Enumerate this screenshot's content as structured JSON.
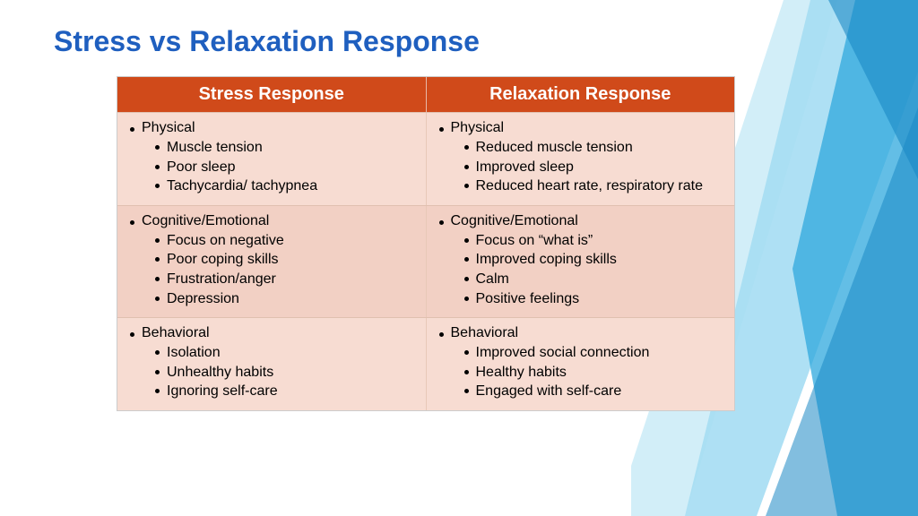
{
  "title": "Stress vs Relaxation Response",
  "colors": {
    "title": "#1f5fbf",
    "header_bg": "#d04a1a",
    "header_text": "#ffffff",
    "row_bg": "#f7dcd2",
    "row_alt_bg": "#f2d0c4",
    "border": "#e0c0b0",
    "text": "#000000"
  },
  "columns": [
    "Stress Response",
    "Relaxation Response"
  ],
  "rows": [
    {
      "left": {
        "category": "Physical",
        "items": [
          "Muscle tension",
          "Poor sleep",
          "Tachycardia/ tachypnea"
        ]
      },
      "right": {
        "category": "Physical",
        "items": [
          "Reduced muscle tension",
          "Improved sleep",
          "Reduced heart rate, respiratory rate"
        ]
      }
    },
    {
      "left": {
        "category": "Cognitive/Emotional",
        "items": [
          "Focus on negative",
          "Poor coping skills",
          "Frustration/anger",
          "Depression"
        ]
      },
      "right": {
        "category": "Cognitive/Emotional",
        "items": [
          "Focus on “what is”",
          "Improved coping skills",
          "Calm",
          "Positive feelings"
        ]
      }
    },
    {
      "left": {
        "category": "Behavioral",
        "items": [
          "Isolation",
          "Unhealthy habits",
          "Ignoring self-care"
        ]
      },
      "right": {
        "category": "Behavioral",
        "items": [
          "Improved social connection",
          "Healthy habits",
          "Engaged with self-care"
        ]
      }
    }
  ],
  "decoration": {
    "stripe_colors": [
      "#2fa8de",
      "#6cc7eb",
      "#1b88c4",
      "#a5def2"
    ]
  }
}
